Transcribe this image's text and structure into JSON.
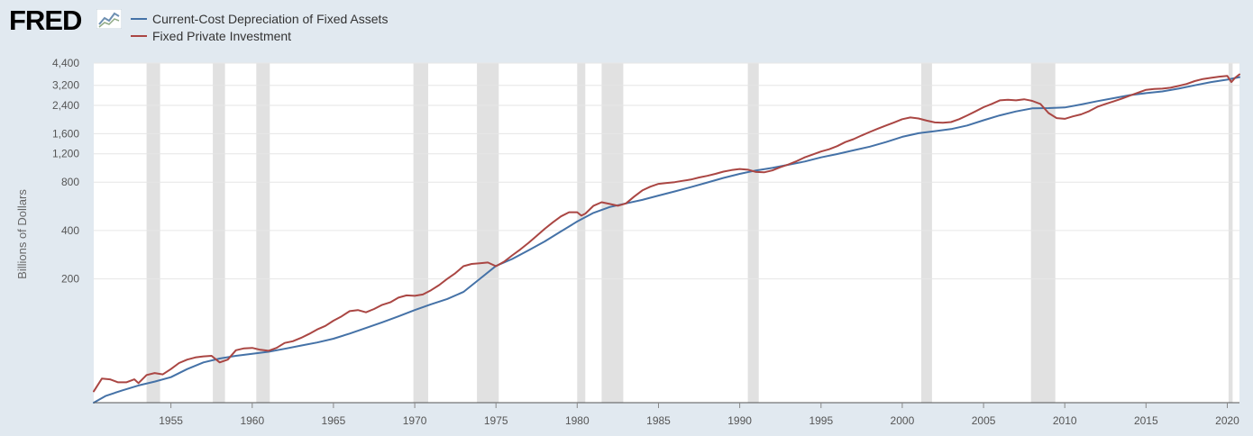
{
  "logo": {
    "text": "FRED"
  },
  "colors": {
    "background": "#e1e9f0",
    "plot_background": "#ffffff",
    "recession_band": "#e1e1e1",
    "depreciation": "#4572a7",
    "investment": "#aa4643"
  },
  "icons": {
    "logo_icon": "line-chart-icon"
  },
  "chart_data": {
    "type": "line",
    "title": "",
    "xlabel": "",
    "ylabel": "Billions of Dollars",
    "yscale": "log",
    "ylim": [
      34,
      4400
    ],
    "xlim": [
      1950.25,
      2020.75
    ],
    "yticks": [
      200,
      400,
      800,
      1200,
      1600,
      2400,
      3200,
      4400
    ],
    "ytick_labels": [
      "200",
      "400",
      "800",
      "1,200",
      "1,600",
      "2,400",
      "3,200",
      "4,400"
    ],
    "xticks": [
      1955,
      1960,
      1965,
      1970,
      1975,
      1980,
      1985,
      1990,
      1995,
      2000,
      2005,
      2010,
      2015,
      2020
    ],
    "xtick_labels": [
      "1955",
      "1960",
      "1965",
      "1970",
      "1975",
      "1980",
      "1985",
      "1990",
      "1995",
      "2000",
      "2005",
      "2010",
      "2015",
      "2020"
    ],
    "grid": true,
    "legend_position": "top-left",
    "recessions": [
      [
        1953.5,
        1954.33
      ],
      [
        1957.58,
        1958.33
      ],
      [
        1960.25,
        1961.08
      ],
      [
        1969.92,
        1970.83
      ],
      [
        1973.83,
        1975.17
      ],
      [
        1980.0,
        1980.5
      ],
      [
        1981.5,
        1982.83
      ],
      [
        1990.5,
        1991.17
      ],
      [
        2001.17,
        2001.83
      ],
      [
        2007.92,
        2009.42
      ],
      [
        2020.08,
        2020.33
      ]
    ],
    "series": [
      {
        "name": "Current-Cost Depreciation of Fixed Assets",
        "color": "#4572a7",
        "points": [
          [
            1950.25,
            34
          ],
          [
            1951,
            37.5
          ],
          [
            1952,
            40.5
          ],
          [
            1953,
            43.5
          ],
          [
            1954,
            46
          ],
          [
            1955,
            49
          ],
          [
            1956,
            55
          ],
          [
            1957,
            60.5
          ],
          [
            1958,
            64
          ],
          [
            1959,
            66.5
          ],
          [
            1960,
            68.5
          ],
          [
            1961,
            70.5
          ],
          [
            1962,
            73.5
          ],
          [
            1963,
            77
          ],
          [
            1964,
            80.5
          ],
          [
            1965,
            85
          ],
          [
            1966,
            91.5
          ],
          [
            1967,
            99
          ],
          [
            1968,
            107.5
          ],
          [
            1969,
            117
          ],
          [
            1970,
            128
          ],
          [
            1971,
            139
          ],
          [
            1972,
            150
          ],
          [
            1973,
            166
          ],
          [
            1974,
            200
          ],
          [
            1975,
            241
          ],
          [
            1976,
            266
          ],
          [
            1977,
            301
          ],
          [
            1978,
            342
          ],
          [
            1979,
            395
          ],
          [
            1980,
            455
          ],
          [
            1981,
            515
          ],
          [
            1982,
            560
          ],
          [
            1983,
            590
          ],
          [
            1984,
            620
          ],
          [
            1985,
            660
          ],
          [
            1986,
            700
          ],
          [
            1987,
            745
          ],
          [
            1988,
            795
          ],
          [
            1989,
            850
          ],
          [
            1990,
            900
          ],
          [
            1991,
            945
          ],
          [
            1992,
            980
          ],
          [
            1993,
            1025
          ],
          [
            1994,
            1075
          ],
          [
            1995,
            1140
          ],
          [
            1996,
            1195
          ],
          [
            1997,
            1260
          ],
          [
            1998,
            1330
          ],
          [
            1999,
            1420
          ],
          [
            2000,
            1530
          ],
          [
            2001,
            1610
          ],
          [
            2002,
            1660
          ],
          [
            2003,
            1710
          ],
          [
            2004,
            1800
          ],
          [
            2005,
            1940
          ],
          [
            2006,
            2080
          ],
          [
            2007,
            2200
          ],
          [
            2008,
            2300
          ],
          [
            2009,
            2310
          ],
          [
            2010,
            2330
          ],
          [
            2011,
            2430
          ],
          [
            2012,
            2550
          ],
          [
            2013,
            2660
          ],
          [
            2014,
            2780
          ],
          [
            2015,
            2860
          ],
          [
            2016,
            2930
          ],
          [
            2017,
            3050
          ],
          [
            2018,
            3200
          ],
          [
            2019,
            3350
          ],
          [
            2020,
            3470
          ],
          [
            2020.75,
            3600
          ]
        ]
      },
      {
        "name": "Fixed Private Investment",
        "color": "#aa4643",
        "points": [
          [
            1950.25,
            40
          ],
          [
            1950.75,
            48
          ],
          [
            1951.25,
            47.5
          ],
          [
            1951.75,
            45.5
          ],
          [
            1952.25,
            45.5
          ],
          [
            1952.75,
            47.5
          ],
          [
            1953,
            45
          ],
          [
            1953.5,
            50.5
          ],
          [
            1954,
            52
          ],
          [
            1954.5,
            51
          ],
          [
            1955,
            55
          ],
          [
            1955.5,
            60
          ],
          [
            1956,
            63
          ],
          [
            1956.5,
            65
          ],
          [
            1957,
            66
          ],
          [
            1957.5,
            66.5
          ],
          [
            1958,
            60.5
          ],
          [
            1958.5,
            63
          ],
          [
            1959,
            72
          ],
          [
            1959.5,
            74
          ],
          [
            1960,
            74.5
          ],
          [
            1960.5,
            72.5
          ],
          [
            1961,
            71.5
          ],
          [
            1961.5,
            74.5
          ],
          [
            1962,
            80
          ],
          [
            1962.5,
            82
          ],
          [
            1963,
            86
          ],
          [
            1963.5,
            91
          ],
          [
            1964,
            97
          ],
          [
            1964.5,
            102
          ],
          [
            1965,
            110
          ],
          [
            1965.5,
            117
          ],
          [
            1966,
            126
          ],
          [
            1966.5,
            128
          ],
          [
            1967,
            124
          ],
          [
            1967.5,
            130
          ],
          [
            1968,
            138
          ],
          [
            1968.5,
            143
          ],
          [
            1969,
            153
          ],
          [
            1969.5,
            158
          ],
          [
            1970,
            157
          ],
          [
            1970.5,
            160
          ],
          [
            1971,
            170
          ],
          [
            1971.5,
            183
          ],
          [
            1972,
            200
          ],
          [
            1972.5,
            217
          ],
          [
            1973,
            240
          ],
          [
            1973.5,
            248
          ],
          [
            1974,
            250
          ],
          [
            1974.5,
            253
          ],
          [
            1975,
            240
          ],
          [
            1975.5,
            256
          ],
          [
            1976,
            280
          ],
          [
            1976.5,
            305
          ],
          [
            1977,
            335
          ],
          [
            1977.5,
            370
          ],
          [
            1978,
            410
          ],
          [
            1978.5,
            450
          ],
          [
            1979,
            490
          ],
          [
            1979.5,
            520
          ],
          [
            1980,
            520
          ],
          [
            1980.25,
            495
          ],
          [
            1980.5,
            510
          ],
          [
            1981,
            570
          ],
          [
            1981.5,
            600
          ],
          [
            1982,
            585
          ],
          [
            1982.5,
            570
          ],
          [
            1983,
            590
          ],
          [
            1983.5,
            650
          ],
          [
            1984,
            710
          ],
          [
            1984.5,
            750
          ],
          [
            1985,
            780
          ],
          [
            1985.5,
            790
          ],
          [
            1986,
            800
          ],
          [
            1986.5,
            815
          ],
          [
            1987,
            830
          ],
          [
            1987.5,
            855
          ],
          [
            1988,
            875
          ],
          [
            1988.5,
            900
          ],
          [
            1989,
            930
          ],
          [
            1989.5,
            950
          ],
          [
            1990,
            965
          ],
          [
            1990.5,
            955
          ],
          [
            1991,
            925
          ],
          [
            1991.5,
            920
          ],
          [
            1992,
            945
          ],
          [
            1992.5,
            990
          ],
          [
            1993,
            1030
          ],
          [
            1993.5,
            1080
          ],
          [
            1994,
            1140
          ],
          [
            1994.5,
            1190
          ],
          [
            1995,
            1240
          ],
          [
            1995.5,
            1280
          ],
          [
            1996,
            1340
          ],
          [
            1996.5,
            1420
          ],
          [
            1997,
            1480
          ],
          [
            1997.5,
            1560
          ],
          [
            1998,
            1640
          ],
          [
            1998.5,
            1720
          ],
          [
            1999,
            1800
          ],
          [
            1999.5,
            1880
          ],
          [
            2000,
            1970
          ],
          [
            2000.5,
            2020
          ],
          [
            2001,
            1990
          ],
          [
            2001.5,
            1930
          ],
          [
            2002,
            1880
          ],
          [
            2002.5,
            1870
          ],
          [
            2003,
            1890
          ],
          [
            2003.5,
            1970
          ],
          [
            2004,
            2080
          ],
          [
            2004.5,
            2200
          ],
          [
            2005,
            2340
          ],
          [
            2005.5,
            2450
          ],
          [
            2006,
            2580
          ],
          [
            2006.5,
            2600
          ],
          [
            2007,
            2580
          ],
          [
            2007.5,
            2620
          ],
          [
            2008,
            2560
          ],
          [
            2008.5,
            2450
          ],
          [
            2009,
            2150
          ],
          [
            2009.5,
            2000
          ],
          [
            2010,
            1980
          ],
          [
            2010.5,
            2050
          ],
          [
            2011,
            2110
          ],
          [
            2011.5,
            2210
          ],
          [
            2012,
            2350
          ],
          [
            2012.5,
            2450
          ],
          [
            2013,
            2540
          ],
          [
            2013.5,
            2640
          ],
          [
            2014,
            2760
          ],
          [
            2014.5,
            2880
          ],
          [
            2015,
            3000
          ],
          [
            2015.5,
            3040
          ],
          [
            2016,
            3050
          ],
          [
            2016.5,
            3090
          ],
          [
            2017,
            3170
          ],
          [
            2017.5,
            3260
          ],
          [
            2018,
            3400
          ],
          [
            2018.5,
            3500
          ],
          [
            2019,
            3560
          ],
          [
            2019.5,
            3620
          ],
          [
            2020,
            3660
          ],
          [
            2020.25,
            3350
          ],
          [
            2020.5,
            3580
          ],
          [
            2020.75,
            3740
          ]
        ]
      }
    ]
  }
}
